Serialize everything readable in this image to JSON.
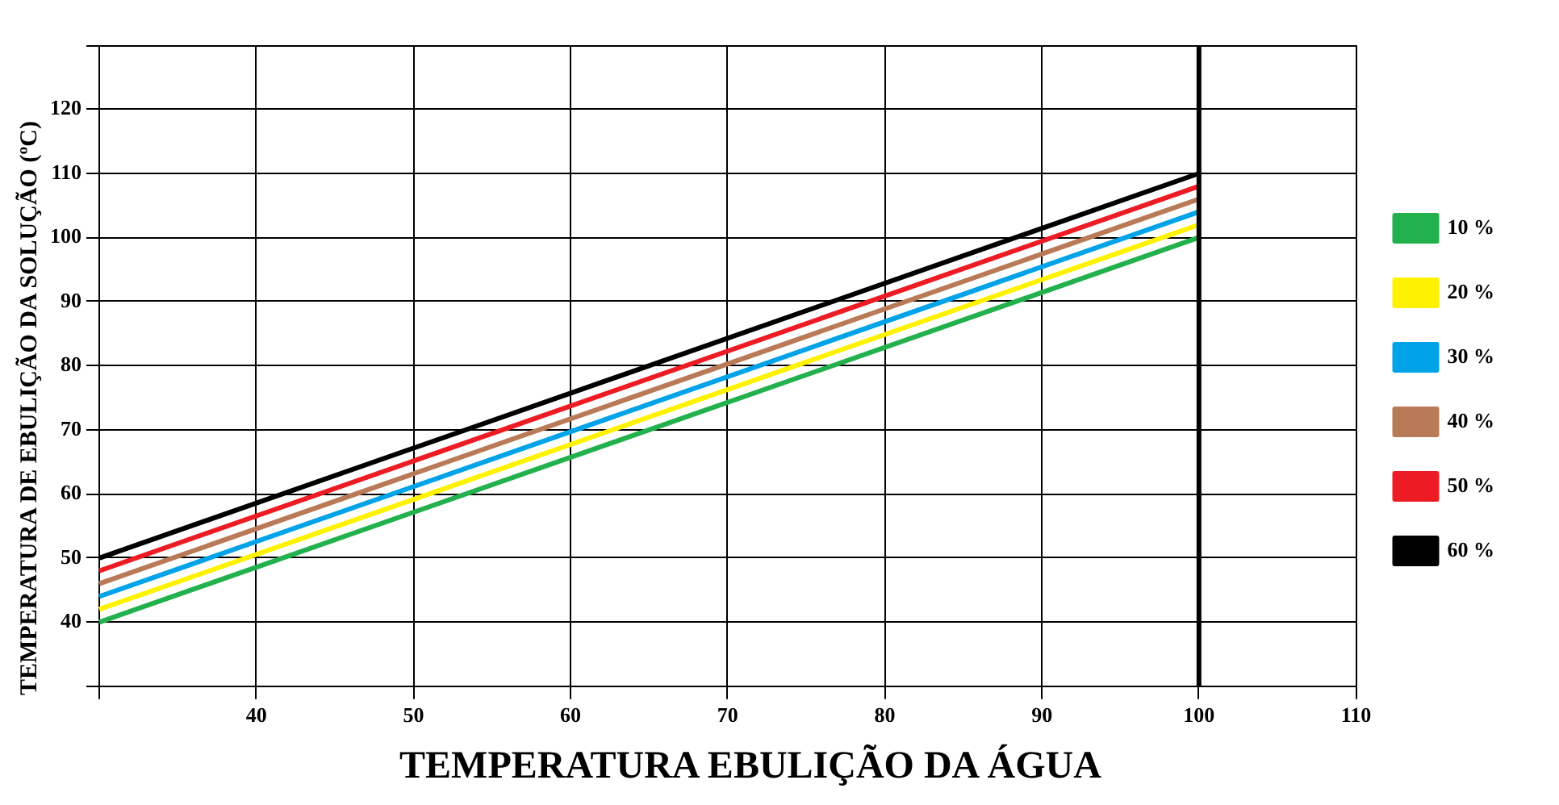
{
  "chart_data": {
    "type": "line",
    "xlabel": "TEMPERATURA EBULIÇÃO DA ÁGUA",
    "ylabel": "TEMPERATURA DE EBULIÇÃO DA SOLUÇÃO (ºC)",
    "x": [
      30,
      100
    ],
    "series": [
      {
        "name": "10 %",
        "color": "#22b14c",
        "values": [
          40,
          100
        ]
      },
      {
        "name": "20 %",
        "color": "#fff200",
        "values": [
          42,
          102
        ]
      },
      {
        "name": "30 %",
        "color": "#00a2e8",
        "values": [
          44,
          104
        ]
      },
      {
        "name": "40 %",
        "color": "#b97a57",
        "values": [
          46,
          106
        ]
      },
      {
        "name": "50 %",
        "color": "#ed1c24",
        "values": [
          48,
          108
        ]
      },
      {
        "name": "60 %",
        "color": "#000000",
        "values": [
          50,
          110
        ]
      }
    ],
    "xlim": [
      30,
      110
    ],
    "xticks": [
      {
        "value": 30,
        "label": null
      },
      40,
      50,
      60,
      70,
      80,
      90,
      100,
      110
    ],
    "ylim": [
      30,
      130
    ],
    "yticks": [
      {
        "value": 30,
        "label": null
      },
      40,
      50,
      60,
      70,
      80,
      90,
      100,
      110,
      120,
      {
        "value": 130,
        "label": null
      }
    ],
    "ref_lines": [
      {
        "axis": "x",
        "value": 100,
        "color": "#000000"
      }
    ],
    "grid": true,
    "legend": "right",
    "marker": "none",
    "line_style": "solid"
  }
}
